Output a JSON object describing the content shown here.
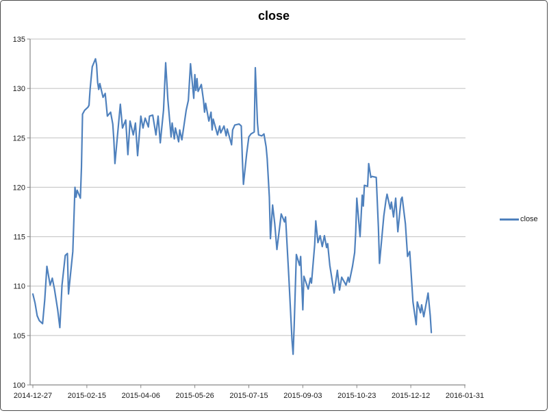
{
  "chart_data": {
    "type": "line",
    "title": "close",
    "xlabel": "",
    "ylabel": "",
    "ylim": [
      100,
      135
    ],
    "y_tick_step": 5,
    "y_ticks": [
      100,
      105,
      110,
      115,
      120,
      125,
      130,
      135
    ],
    "x_ticks": [
      "2014-12-27",
      "2015-02-15",
      "2015-04-06",
      "2015-05-26",
      "2015-07-15",
      "2015-09-03",
      "2015-10-23",
      "2015-12-12",
      "2016-01-31"
    ],
    "grid": true,
    "legend_position": "right",
    "colors": {
      "series": "#4F81BD",
      "gridline": "#BFBFBF",
      "axis": "#868686",
      "label": "#1a1a1a",
      "frame_border": "#4a4a4a",
      "background": "#ffffff"
    },
    "series": [
      {
        "name": "close",
        "color": "#4F81BD",
        "points": [
          [
            "2014-12-27",
            109.2
          ],
          [
            "2014-12-29",
            108.3
          ],
          [
            "2014-12-31",
            107.0
          ],
          [
            "2015-01-02",
            106.5
          ],
          [
            "2015-01-05",
            106.2
          ],
          [
            "2015-01-07",
            108.6
          ],
          [
            "2015-01-09",
            112.0
          ],
          [
            "2015-01-12",
            110.1
          ],
          [
            "2015-01-14",
            110.8
          ],
          [
            "2015-01-16",
            109.7
          ],
          [
            "2015-01-19",
            107.6
          ],
          [
            "2015-01-21",
            105.8
          ],
          [
            "2015-01-23",
            110.1
          ],
          [
            "2015-01-26",
            113.1
          ],
          [
            "2015-01-28",
            113.3
          ],
          [
            "2015-01-29",
            109.2
          ],
          [
            "2015-02-02",
            113.5
          ],
          [
            "2015-02-04",
            120.0
          ],
          [
            "2015-02-05",
            119.0
          ],
          [
            "2015-02-06",
            119.7
          ],
          [
            "2015-02-09",
            118.9
          ],
          [
            "2015-02-10",
            122.0
          ],
          [
            "2015-02-11",
            127.4
          ],
          [
            "2015-02-13",
            127.8
          ],
          [
            "2015-02-16",
            128.1
          ],
          [
            "2015-02-17",
            128.3
          ],
          [
            "2015-02-18",
            129.9
          ],
          [
            "2015-02-20",
            132.2
          ],
          [
            "2015-02-23",
            133.0
          ],
          [
            "2015-02-24",
            132.4
          ],
          [
            "2015-02-25",
            130.6
          ],
          [
            "2015-02-26",
            129.9
          ],
          [
            "2015-02-27",
            130.5
          ],
          [
            "2015-03-02",
            129.1
          ],
          [
            "2015-03-04",
            129.5
          ],
          [
            "2015-03-06",
            127.2
          ],
          [
            "2015-03-09",
            127.6
          ],
          [
            "2015-03-11",
            126.4
          ],
          [
            "2015-03-12",
            124.8
          ],
          [
            "2015-03-13",
            122.4
          ],
          [
            "2015-03-18",
            128.4
          ],
          [
            "2015-03-20",
            126.0
          ],
          [
            "2015-03-23",
            126.8
          ],
          [
            "2015-03-25",
            123.3
          ],
          [
            "2015-03-27",
            126.7
          ],
          [
            "2015-03-30",
            125.3
          ],
          [
            "2015-04-01",
            126.5
          ],
          [
            "2015-04-03",
            123.2
          ],
          [
            "2015-04-06",
            127.2
          ],
          [
            "2015-04-08",
            126.0
          ],
          [
            "2015-04-10",
            127.0
          ],
          [
            "2015-04-13",
            126.1
          ],
          [
            "2015-04-14",
            127.2
          ],
          [
            "2015-04-17",
            127.3
          ],
          [
            "2015-04-20",
            125.3
          ],
          [
            "2015-04-22",
            127.2
          ],
          [
            "2015-04-24",
            124.5
          ],
          [
            "2015-04-27",
            127.8
          ],
          [
            "2015-04-29",
            132.6
          ],
          [
            "2015-05-01",
            128.9
          ],
          [
            "2015-05-04",
            125.1
          ],
          [
            "2015-05-05",
            126.5
          ],
          [
            "2015-05-07",
            124.9
          ],
          [
            "2015-05-08",
            126.0
          ],
          [
            "2015-05-11",
            124.6
          ],
          [
            "2015-05-12",
            125.8
          ],
          [
            "2015-05-14",
            124.8
          ],
          [
            "2015-05-18",
            127.8
          ],
          [
            "2015-05-19",
            128.3
          ],
          [
            "2015-05-20",
            128.8
          ],
          [
            "2015-05-22",
            132.5
          ],
          [
            "2015-05-25",
            129.0
          ],
          [
            "2015-05-26",
            131.4
          ],
          [
            "2015-05-27",
            129.8
          ],
          [
            "2015-05-28",
            131.0
          ],
          [
            "2015-05-29",
            129.7
          ],
          [
            "2015-06-01",
            130.4
          ],
          [
            "2015-06-03",
            128.8
          ],
          [
            "2015-06-04",
            127.6
          ],
          [
            "2015-06-05",
            128.5
          ],
          [
            "2015-06-08",
            126.7
          ],
          [
            "2015-06-10",
            127.6
          ],
          [
            "2015-06-11",
            125.8
          ],
          [
            "2015-06-12",
            126.9
          ],
          [
            "2015-06-16",
            125.3
          ],
          [
            "2015-06-18",
            126.2
          ],
          [
            "2015-06-19",
            125.5
          ],
          [
            "2015-06-22",
            126.2
          ],
          [
            "2015-06-24",
            125.2
          ],
          [
            "2015-06-25",
            125.9
          ],
          [
            "2015-06-29",
            124.3
          ],
          [
            "2015-06-30",
            125.8
          ],
          [
            "2015-07-02",
            126.3
          ],
          [
            "2015-07-06",
            126.4
          ],
          [
            "2015-07-08",
            126.2
          ],
          [
            "2015-07-09",
            122.9
          ],
          [
            "2015-07-10",
            120.3
          ],
          [
            "2015-07-13",
            123.4
          ],
          [
            "2015-07-15",
            125.1
          ],
          [
            "2015-07-17",
            125.4
          ],
          [
            "2015-07-20",
            125.6
          ],
          [
            "2015-07-21",
            132.1
          ],
          [
            "2015-07-23",
            126.5
          ],
          [
            "2015-07-24",
            125.3
          ],
          [
            "2015-07-27",
            125.2
          ],
          [
            "2015-07-29",
            125.4
          ],
          [
            "2015-07-31",
            124.1
          ],
          [
            "2015-08-01",
            122.9
          ],
          [
            "2015-08-03",
            119.0
          ],
          [
            "2015-08-04",
            114.8
          ],
          [
            "2015-08-06",
            118.2
          ],
          [
            "2015-08-08",
            116.3
          ],
          [
            "2015-08-10",
            113.7
          ],
          [
            "2015-08-12",
            115.5
          ],
          [
            "2015-08-14",
            117.3
          ],
          [
            "2015-08-17",
            116.5
          ],
          [
            "2015-08-18",
            117.0
          ],
          [
            "2015-08-21",
            111.0
          ],
          [
            "2015-08-24",
            104.5
          ],
          [
            "2015-08-25",
            103.1
          ],
          [
            "2015-08-26",
            106.0
          ],
          [
            "2015-08-28",
            113.2
          ],
          [
            "2015-08-31",
            112.1
          ],
          [
            "2015-09-01",
            113.0
          ],
          [
            "2015-09-03",
            107.6
          ],
          [
            "2015-09-04",
            111.0
          ],
          [
            "2015-09-08",
            109.7
          ],
          [
            "2015-09-10",
            110.8
          ],
          [
            "2015-09-11",
            110.3
          ],
          [
            "2015-09-14",
            114.2
          ],
          [
            "2015-09-15",
            116.6
          ],
          [
            "2015-09-17",
            114.4
          ],
          [
            "2015-09-19",
            115.1
          ],
          [
            "2015-09-21",
            114.0
          ],
          [
            "2015-09-23",
            115.1
          ],
          [
            "2015-09-25",
            113.9
          ],
          [
            "2015-09-26",
            114.3
          ],
          [
            "2015-09-28",
            112.1
          ],
          [
            "2015-10-02",
            109.3
          ],
          [
            "2015-10-05",
            111.6
          ],
          [
            "2015-10-07",
            109.6
          ],
          [
            "2015-10-09",
            110.9
          ],
          [
            "2015-10-13",
            110.1
          ],
          [
            "2015-10-15",
            110.9
          ],
          [
            "2015-10-16",
            110.4
          ],
          [
            "2015-10-19",
            112.0
          ],
          [
            "2015-10-21",
            113.4
          ],
          [
            "2015-10-22",
            115.5
          ],
          [
            "2015-10-23",
            118.9
          ],
          [
            "2015-10-26",
            115.0
          ],
          [
            "2015-10-28",
            119.2
          ],
          [
            "2015-10-29",
            118.1
          ],
          [
            "2015-10-30",
            120.2
          ],
          [
            "2015-11-02",
            120.1
          ],
          [
            "2015-11-03",
            122.4
          ],
          [
            "2015-11-05",
            121.0
          ],
          [
            "2015-11-06",
            121.1
          ],
          [
            "2015-11-10",
            121.0
          ],
          [
            "2015-11-12",
            115.9
          ],
          [
            "2015-11-13",
            112.3
          ],
          [
            "2015-11-16",
            115.9
          ],
          [
            "2015-11-17",
            117.1
          ],
          [
            "2015-11-19",
            118.7
          ],
          [
            "2015-11-20",
            119.3
          ],
          [
            "2015-11-23",
            117.8
          ],
          [
            "2015-11-24",
            118.5
          ],
          [
            "2015-11-26",
            117.0
          ],
          [
            "2015-11-28",
            118.9
          ],
          [
            "2015-11-30",
            115.5
          ],
          [
            "2015-12-03",
            118.8
          ],
          [
            "2015-12-04",
            119.0
          ],
          [
            "2015-12-07",
            116.3
          ],
          [
            "2015-12-09",
            113.0
          ],
          [
            "2015-12-11",
            113.5
          ],
          [
            "2015-12-14",
            108.4
          ],
          [
            "2015-12-17",
            106.1
          ],
          [
            "2015-12-18",
            108.4
          ],
          [
            "2015-12-21",
            107.3
          ],
          [
            "2015-12-22",
            108.1
          ],
          [
            "2015-12-24",
            106.9
          ],
          [
            "2015-12-28",
            109.3
          ],
          [
            "2015-12-30",
            107.0
          ],
          [
            "2015-12-31",
            105.3
          ]
        ]
      }
    ]
  },
  "legend": {
    "label": "close"
  }
}
